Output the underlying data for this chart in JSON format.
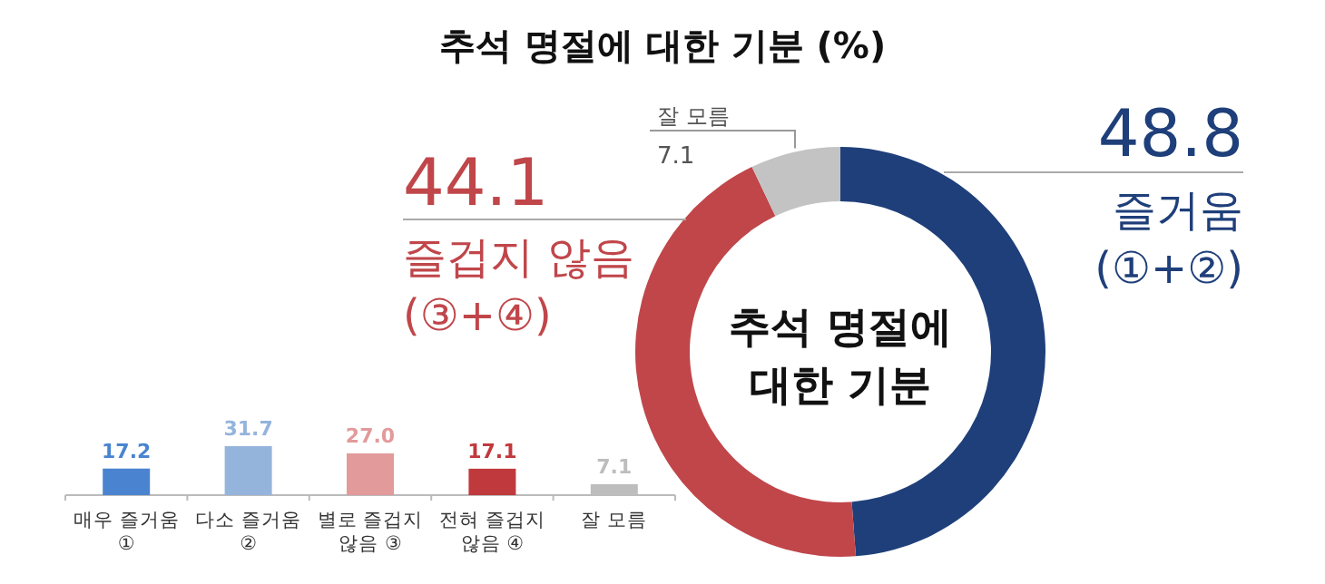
{
  "chart_data": [
    {
      "type": "donut",
      "title": "추석 명절에 대한 기분 (%)",
      "categories": [
        "즐거움 (①+②)",
        "즐겁지 않음 (③+④)",
        "잘 모름"
      ],
      "values": [
        48.8,
        44.1,
        7.1
      ],
      "colors": [
        "#1f3f7a",
        "#c0464a",
        "#c3c3c3"
      ],
      "data_labels": true,
      "annotations": [
        "추석 명절에 대한 기분"
      ]
    },
    {
      "type": "bar",
      "categories": [
        "매우 즐거움 ①",
        "다소 즐거움 ②",
        "별로 즐겁지 않음 ③",
        "전혀 즐겁지 않음 ④",
        "잘 모름"
      ],
      "values": [
        17.2,
        31.7,
        27.0,
        17.1,
        7.1
      ],
      "value_labels": [
        "17.2",
        "31.7",
        "27.0",
        "17.1",
        "7.1"
      ],
      "colors": [
        "#4a84d0",
        "#94b4dc",
        "#e29a9b",
        "#c0393c",
        "#bdbdbd"
      ]
    }
  ]
}
